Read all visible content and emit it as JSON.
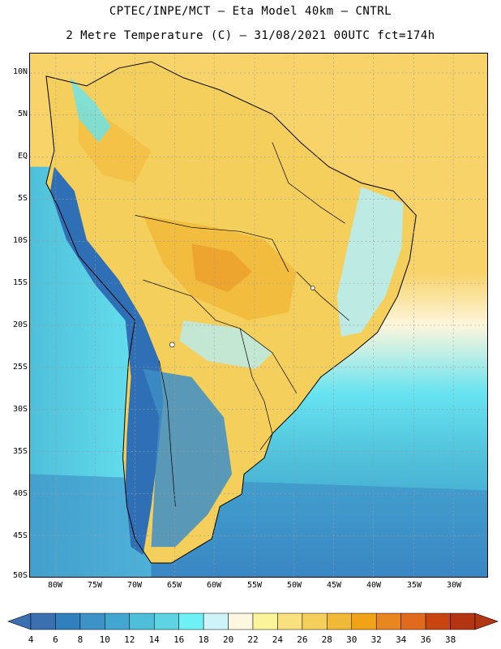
{
  "header": {
    "line1": "CPTEC/INPE/MCT –  Eta Model 40km – CNTRL",
    "line2": "2 Metre Temperature (C) – 31/08/2021 00UTC fct=174h"
  },
  "axes": {
    "lat_labels": [
      "10N",
      "5N",
      "EQ",
      "5S",
      "10S",
      "15S",
      "20S",
      "25S",
      "30S",
      "35S",
      "40S",
      "45S",
      "50S"
    ],
    "lon_labels": [
      "80W",
      "75W",
      "70W",
      "65W",
      "60W",
      "55W",
      "50W",
      "45W",
      "40W",
      "35W",
      "30W"
    ]
  },
  "colorbar": {
    "levels": [
      "4",
      "6",
      "8",
      "10",
      "12",
      "14",
      "16",
      "18",
      "20",
      "22",
      "24",
      "26",
      "28",
      "30",
      "32",
      "34",
      "36",
      "38"
    ],
    "colors": [
      "#3a6fb0",
      "#2f80bd",
      "#3d93c7",
      "#43a6d1",
      "#4fbfd9",
      "#5ed3e2",
      "#6ff0f5",
      "#cef4fa",
      "#fdf7e2",
      "#fcf49a",
      "#fae17f",
      "#f5cf5c",
      "#f1b938",
      "#f0a317",
      "#e88620",
      "#e06b1f",
      "#c8450f",
      "#b33512"
    ],
    "under_color": "#3a6fb0",
    "over_color": "#b33512"
  },
  "map_colors": {
    "ocean_warm": "#f7d36a",
    "ocean_mild": "#fdf6dd",
    "ocean_cool": "#66e3f0",
    "ocean_cold": "#4fbfd9",
    "ocean_colder": "#43a6d1",
    "ocean_coldest": "#3a86c2",
    "land_hot": "#f1b938",
    "land_warm": "#f5cf5c",
    "land_cool": "#b8ecf3",
    "andes": "#2f6fb5",
    "patagonia": "#3d8ec6",
    "border": "#000000",
    "grid": "#9a9a9a"
  }
}
